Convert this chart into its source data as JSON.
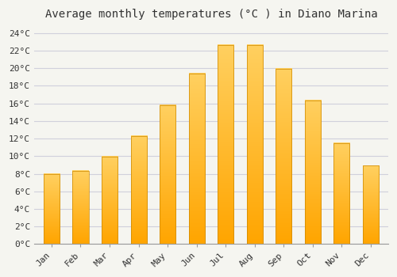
{
  "title": "Average monthly temperatures (°C ) in Diano Marina",
  "months": [
    "Jan",
    "Feb",
    "Mar",
    "Apr",
    "May",
    "Jun",
    "Jul",
    "Aug",
    "Sep",
    "Oct",
    "Nov",
    "Dec"
  ],
  "values": [
    8.0,
    8.3,
    9.9,
    12.3,
    15.8,
    19.4,
    22.6,
    22.6,
    19.9,
    16.3,
    11.5,
    8.9
  ],
  "bar_color_top": "#FFB300",
  "bar_color_bottom": "#FF8C00",
  "background_color": "#F5F5F0",
  "grid_color": "#D0D0DC",
  "ylim": [
    0,
    25
  ],
  "ytick_step": 2,
  "title_fontsize": 10,
  "tick_fontsize": 8,
  "font_family": "monospace"
}
